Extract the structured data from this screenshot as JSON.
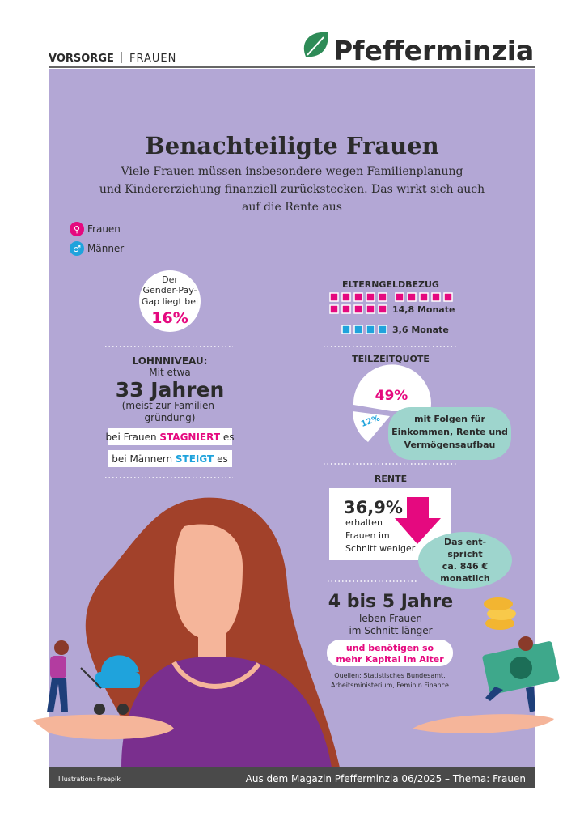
{
  "header": {
    "section": "Vorsorge",
    "topic": "Frauen",
    "logo": "Pfefferminzia"
  },
  "title": "Benachteiligte Frauen",
  "subtitle": [
    "Viele Frauen müssen insbesondere wegen Familienplanung",
    "und Kindererziehung finanziell zurückstecken. Das wirkt sich auch",
    "auf die Rente aus"
  ],
  "legend": [
    "Frauen",
    "Männer"
  ],
  "gender_pay_gap": {
    "text": [
      "Der",
      "Gender-Pay-",
      "Gap liegt bei"
    ],
    "value": "16%"
  },
  "lohnniveau": {
    "heading": "LOHNNIVEAU:",
    "intro": "Mit etwa",
    "age": "33 Jahren",
    "note": [
      "(meist zur Familien-",
      "gründung)"
    ],
    "women": [
      "bei Frauen",
      "STAGNIERT",
      "es"
    ],
    "men": [
      "bei Männern",
      "STEIGT",
      "es"
    ]
  },
  "elterngeld": {
    "heading": "ELTERNGELDBEZUG",
    "women": "14,8 Monate",
    "men": "3,6 Monate"
  },
  "teilzeit": {
    "heading": "TEILZEITQUOTE",
    "women": "49%",
    "men": "12%",
    "note": [
      "mit Folgen für",
      "Einkommen, Rente und",
      "Vermögensaufbau"
    ]
  },
  "rente": {
    "heading": "RENTE",
    "value": "36,9%",
    "text": [
      "erhalten",
      "Frauen im",
      "Schnitt weniger"
    ],
    "note": [
      "Das ent-",
      "spricht",
      "ca. 846 €",
      "monatlich"
    ]
  },
  "lebenserwartung": {
    "value": "4 bis 5 Jahre",
    "text": [
      "leben Frauen",
      "im Schnitt länger"
    ],
    "note": [
      "und benötigen so",
      "mehr Kapital im Alter"
    ]
  },
  "sources": [
    "Quellen: Statistisches Bundesamt,",
    "Arbeitsministerium, Feminin Finance"
  ],
  "footer": {
    "credit": "Illustration: Freepik",
    "magazine": "Aus dem Magazin Pfefferminzia 06/2025 – Thema: Frauen"
  }
}
